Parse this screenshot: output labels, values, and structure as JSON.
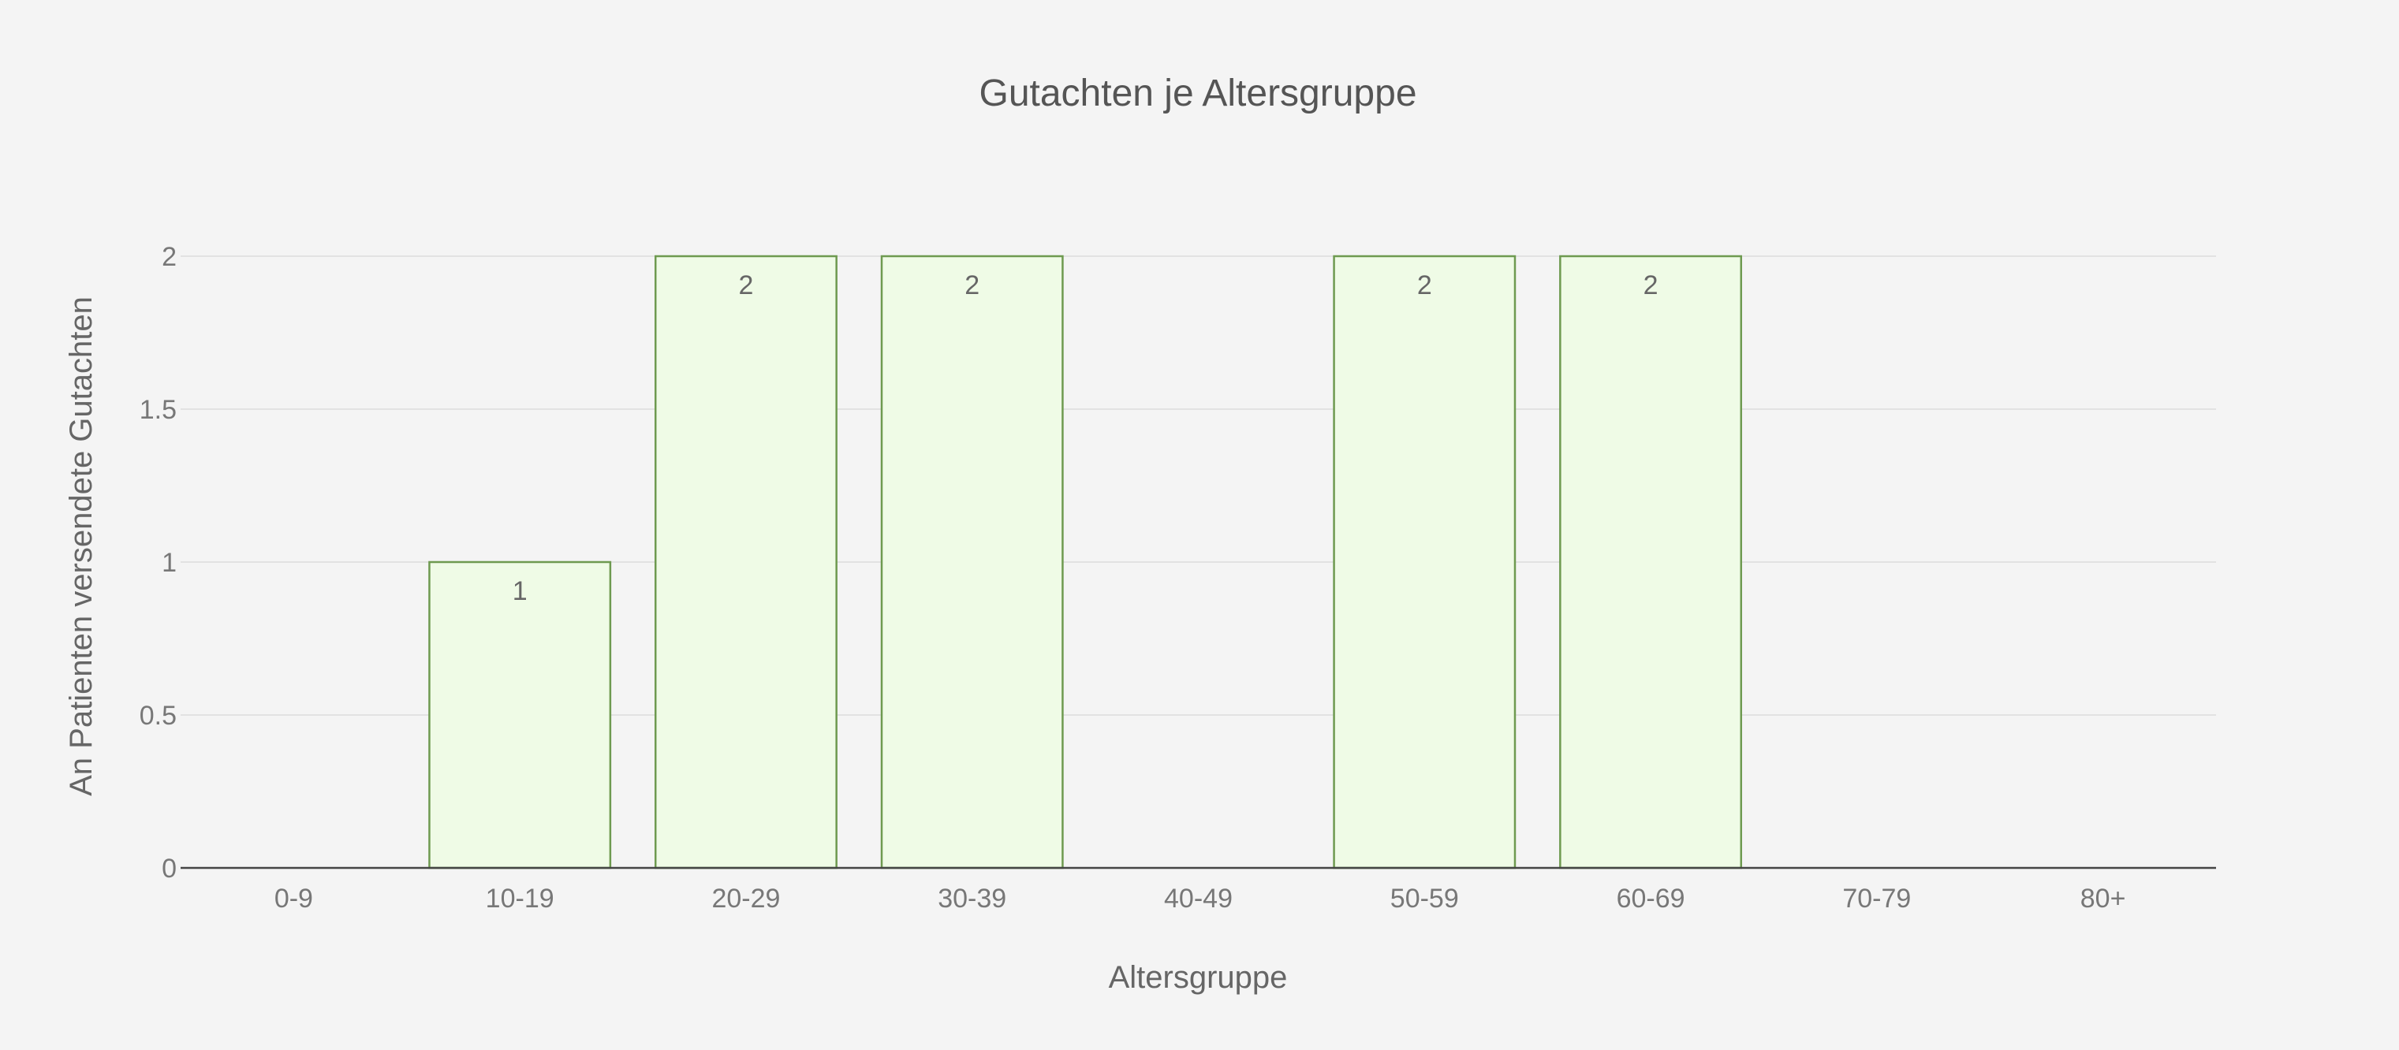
{
  "chart_data": {
    "type": "bar",
    "title": "Gutachten je Altersgruppe",
    "xlabel": "Altersgruppe",
    "ylabel": "An Patienten versendete Gutachten",
    "categories": [
      "0-9",
      "10-19",
      "20-29",
      "30-39",
      "40-49",
      "50-59",
      "60-69",
      "70-79",
      "80+"
    ],
    "values": [
      0,
      1,
      2,
      2,
      0,
      2,
      2,
      0,
      0
    ],
    "data_labels": [
      "",
      "1",
      "2",
      "2",
      "",
      "2",
      "2",
      "",
      ""
    ],
    "ylim": [
      0,
      2
    ],
    "yticks": [
      0,
      0.5,
      1,
      1.5,
      2
    ],
    "ytick_labels": [
      "0",
      "0.5",
      "1",
      "1.5",
      "2"
    ],
    "grid": true,
    "legend": "none",
    "colors": {
      "bar_fill": "#effbe6",
      "bar_stroke": "#6e9a50",
      "background": "#f4f4f4"
    }
  }
}
